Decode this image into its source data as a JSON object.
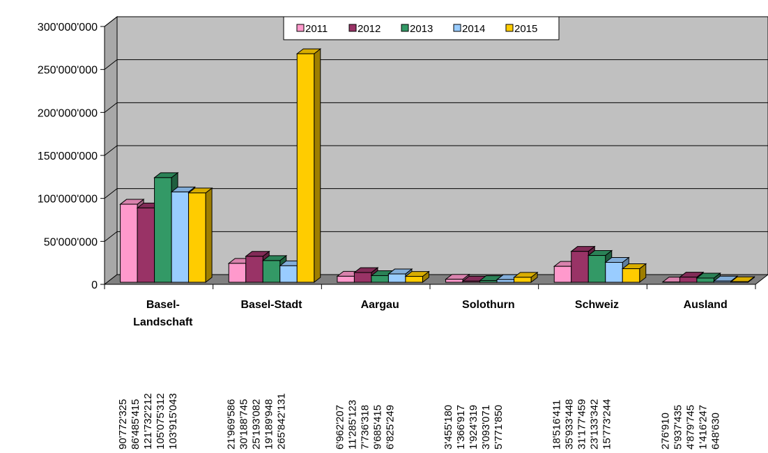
{
  "chart_data": {
    "type": "bar",
    "categories": [
      "Basel-Landschaft",
      "Basel-Stadt",
      "Aargau",
      "Solothurn",
      "Schweiz",
      "Ausland"
    ],
    "category_lines": [
      [
        "Basel-",
        "Landschaft"
      ],
      [
        "Basel-Stadt"
      ],
      [
        "Aargau"
      ],
      [
        "Solothurn"
      ],
      [
        "Schweiz"
      ],
      [
        "Ausland"
      ]
    ],
    "series": [
      {
        "name": "2011",
        "color": "#ff99cc",
        "values": [
          90772325,
          21969586,
          6962207,
          3455180,
          18516411,
          276910
        ],
        "labels": [
          "90'772'325",
          "21'969'586",
          "6'962'207",
          "3'455'180",
          "18'516'411",
          "276'910"
        ]
      },
      {
        "name": "2012",
        "color": "#993366",
        "values": [
          86485415,
          30188745,
          11285123,
          1366917,
          35933448,
          5937435
        ],
        "labels": [
          "86'485'415",
          "30'188'745",
          "11'285'123",
          "1'366'917",
          "35'933'448",
          "5'937'435"
        ]
      },
      {
        "name": "2013",
        "color": "#339966",
        "values": [
          121732212,
          25193082,
          7736318,
          1924319,
          31177459,
          4879745
        ],
        "labels": [
          "121'732'212",
          "25'193'082",
          "7'736'318",
          "1'924'319",
          "31'177'459",
          "4'879'745"
        ]
      },
      {
        "name": "2014",
        "color": "#99ccff",
        "values": [
          105075312,
          19189948,
          9685415,
          3093071,
          23133342,
          1416247
        ],
        "labels": [
          "105'075'312",
          "19'189'948",
          "9'685'415",
          "3'093'071",
          "23'133'342",
          "1'416'247"
        ]
      },
      {
        "name": "2015",
        "color": "#ffcc00",
        "values": [
          103915043,
          265842131,
          6825249,
          5771850,
          15773244,
          648630
        ],
        "labels": [
          "103'915'043",
          "265'842'131",
          "6'825'249",
          "5'771'850",
          "15'773'244",
          "648'630"
        ]
      }
    ],
    "yticks": [
      0,
      50000000,
      100000000,
      150000000,
      200000000,
      250000000,
      300000000
    ],
    "ytick_labels": [
      "0",
      "50'000'000",
      "100'000'000",
      "150'000'000",
      "200'000'000",
      "250'000'000",
      "300'000'000"
    ],
    "ylim": [
      0,
      300000000
    ],
    "grid": true,
    "legend_position": "top",
    "wall_color": "#c0c0c0",
    "floor_color": "#808080"
  }
}
